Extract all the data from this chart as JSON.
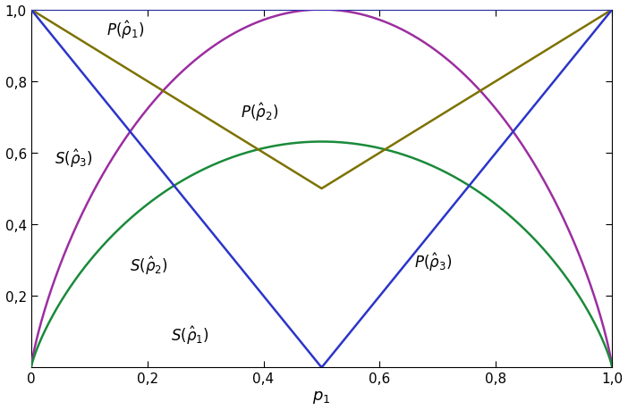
{
  "xlabel": "$p_1$",
  "xlim": [
    0,
    1
  ],
  "ylim": [
    0,
    1
  ],
  "xticks": [
    0.0,
    0.2,
    0.4,
    0.6,
    0.8,
    1.0
  ],
  "yticks": [
    0.2,
    0.4,
    0.6,
    0.8,
    1.0
  ],
  "xtick_labels": [
    "0",
    "0,2",
    "0,4",
    "0,6",
    "0,8",
    "1,0"
  ],
  "ytick_labels": [
    "0,2",
    "0,4",
    "0,6",
    "0,8",
    "1,0"
  ],
  "color_blue": "#2b35c9",
  "color_purple": "#9c2ea0",
  "color_olive": "#7d7200",
  "color_green": "#1a8a3a",
  "background_color": "#ffffff",
  "line_width": 1.8,
  "annotation_fontsize": 12,
  "tick_fontsize": 11,
  "xlabel_fontsize": 13
}
